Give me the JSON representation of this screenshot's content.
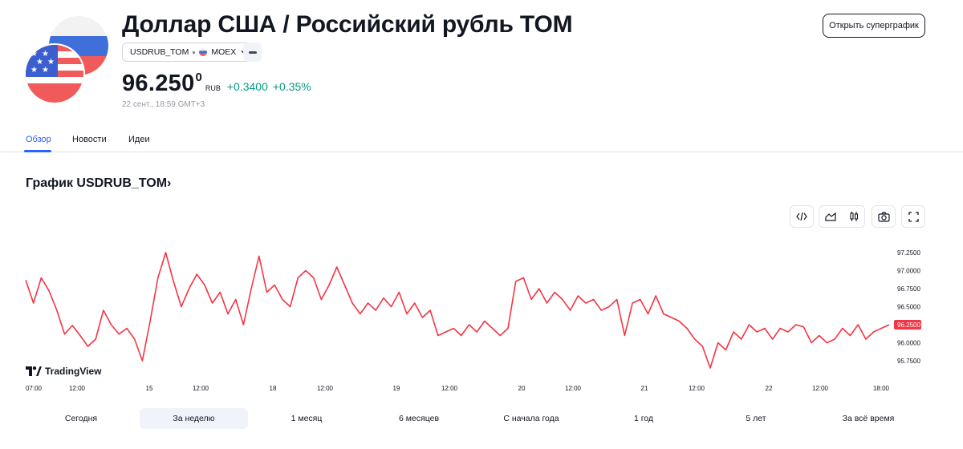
{
  "header": {
    "title": "Доллар США / Российский рубль TOM",
    "symbol": "USDRUB_TOM",
    "exchange": "MOEX",
    "price_main": "96.250",
    "price_sup": "0",
    "currency": "RUB",
    "change_abs": "+0.3400",
    "change_pct": "+0.35%",
    "timestamp": "22 сент., 18:59 GMT+3",
    "super_button": "Открыть суперграфик",
    "colors": {
      "positive": "#089981",
      "accent": "#2962ff",
      "line": "#f23645"
    }
  },
  "tabs": [
    {
      "label": "Обзор",
      "active": true
    },
    {
      "label": "Новости",
      "active": false
    },
    {
      "label": "Идеи",
      "active": false
    }
  ],
  "chart_section": {
    "heading": "График USDRUB_TOM›",
    "tools": [
      "embed-code-icon",
      "area-chart-icon",
      "candles-icon",
      "camera-icon",
      "fullscreen-icon"
    ],
    "brand": "TradingView"
  },
  "chart_data": {
    "type": "line",
    "color": "#f23645",
    "x_tick_labels": [
      "07:00",
      "12:00",
      "15",
      "12:00",
      "18",
      "12:00",
      "19",
      "12:00",
      "20",
      "12:00",
      "21",
      "12:00",
      "22",
      "12:00",
      "18:00"
    ],
    "y_tick_labels": [
      "97.2500",
      "97.0000",
      "96.7500",
      "96.5000",
      "96.2500",
      "96.0000",
      "95.7500"
    ],
    "ylim": [
      95.7,
      97.3
    ],
    "last_value": "96.2500",
    "grid": false,
    "y": [
      96.87,
      96.55,
      96.9,
      96.72,
      96.45,
      96.12,
      96.24,
      96.1,
      95.95,
      96.05,
      96.45,
      96.25,
      96.12,
      96.2,
      96.05,
      95.75,
      96.3,
      96.9,
      97.25,
      96.85,
      96.5,
      96.75,
      96.95,
      96.8,
      96.55,
      96.7,
      96.4,
      96.6,
      96.25,
      96.75,
      97.2,
      96.7,
      96.8,
      96.6,
      96.5,
      96.9,
      97.0,
      96.9,
      96.6,
      96.8,
      97.05,
      96.8,
      96.55,
      96.4,
      96.55,
      96.45,
      96.62,
      96.5,
      96.7,
      96.4,
      96.55,
      96.35,
      96.45,
      96.1,
      96.15,
      96.2,
      96.1,
      96.25,
      96.15,
      96.3,
      96.2,
      96.1,
      96.2,
      96.85,
      96.9,
      96.6,
      96.75,
      96.55,
      96.7,
      96.6,
      96.45,
      96.65,
      96.55,
      96.6,
      96.45,
      96.5,
      96.6,
      96.1,
      96.55,
      96.6,
      96.4,
      96.65,
      96.4,
      96.35,
      96.3,
      96.2,
      96.05,
      95.95,
      95.65,
      96.0,
      95.9,
      96.15,
      96.05,
      96.25,
      96.15,
      96.2,
      96.05,
      96.2,
      96.15,
      96.25,
      96.22,
      96.0,
      96.1,
      96.0,
      96.05,
      96.2,
      96.1,
      96.25,
      96.05,
      96.15,
      96.2,
      96.25
    ]
  },
  "ranges": [
    {
      "label": "Сегодня",
      "active": false
    },
    {
      "label": "За неделю",
      "active": true
    },
    {
      "label": "1 месяц",
      "active": false
    },
    {
      "label": "6 месяцев",
      "active": false
    },
    {
      "label": "С начала года",
      "active": false
    },
    {
      "label": "1 год",
      "active": false
    },
    {
      "label": "5 лет",
      "active": false
    },
    {
      "label": "За всё время",
      "active": false
    }
  ]
}
